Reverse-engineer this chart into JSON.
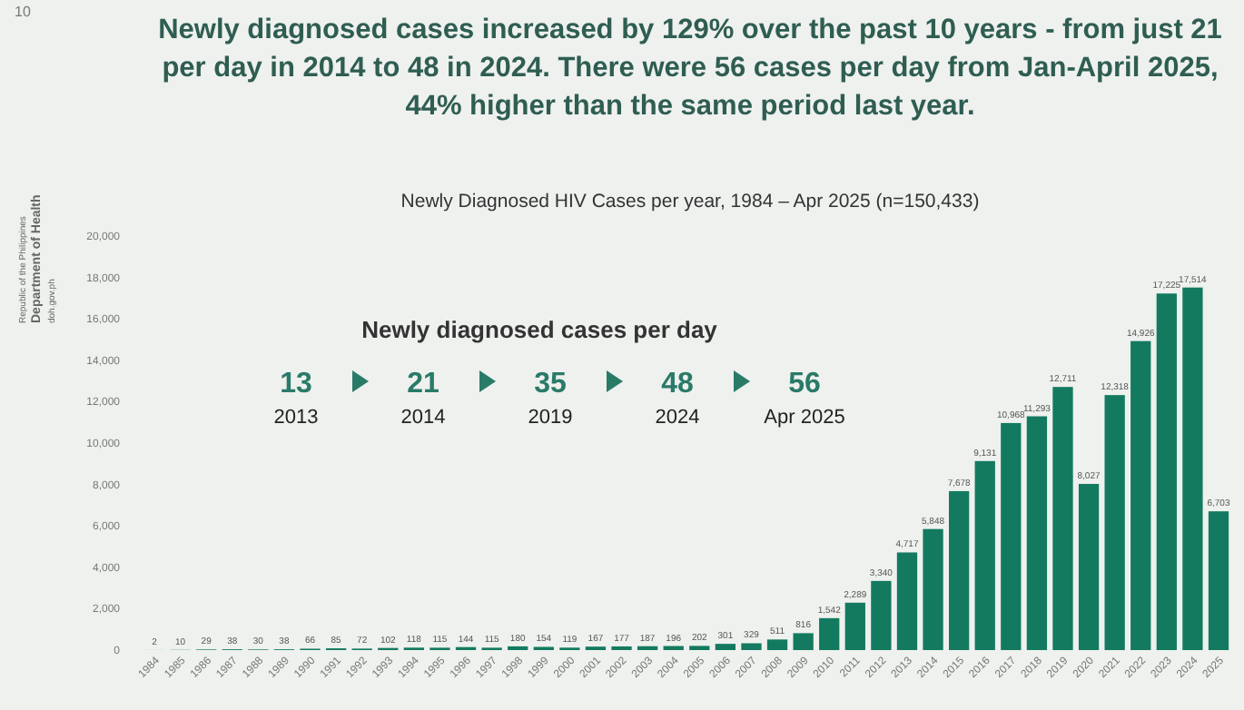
{
  "chart_data": {
    "type": "bar",
    "title": "Newly diagnosed cases increased by 129% over the past 10 years - from just 21 per day in 2014 to 48 in 2024. There were 56 cases per day from Jan-April 2025, 44% higher than the same period last year.",
    "subtitle": "Newly Diagnosed HIV Cases per year, 1984 – Apr 2025 (n=150,433)",
    "categories": [
      "1984",
      "1985",
      "1986",
      "1987",
      "1988",
      "1989",
      "1990",
      "1991",
      "1992",
      "1993",
      "1994",
      "1995",
      "1996",
      "1997",
      "1998",
      "1999",
      "2000",
      "2001",
      "2002",
      "2003",
      "2004",
      "2005",
      "2006",
      "2007",
      "2008",
      "2009",
      "2010",
      "2011",
      "2012",
      "2013",
      "2014",
      "2015",
      "2016",
      "2017",
      "2018",
      "2019",
      "2020",
      "2021",
      "2022",
      "2023",
      "2024",
      "2025"
    ],
    "values": [
      2,
      10,
      29,
      38,
      30,
      38,
      66,
      85,
      72,
      102,
      118,
      115,
      144,
      115,
      180,
      154,
      119,
      167,
      177,
      187,
      196,
      202,
      301,
      329,
      511,
      816,
      1542,
      2289,
      3340,
      4717,
      5848,
      7678,
      9131,
      10968,
      11293,
      12711,
      8027,
      12318,
      14926,
      17225,
      17514,
      6703
    ],
    "color": "#137a60",
    "value_labels": [
      "2",
      "10",
      "29",
      "38",
      "30",
      "38",
      "66",
      "85",
      "72",
      "102",
      "118",
      "115",
      "144",
      "115",
      "180",
      "154",
      "119",
      "167",
      "177",
      "187",
      "196",
      "202",
      "301",
      "329",
      "511",
      "816",
      "1,542",
      "2,289",
      "3,340",
      "4,717",
      "5,848",
      "7,678",
      "9,131",
      "10,968",
      "11,293",
      "12,711",
      "8,027",
      "12,318",
      "14,926",
      "17,225",
      "17,514",
      "6,703"
    ],
    "ylim": [
      0,
      20000
    ],
    "yticks": [
      {
        "value": 0,
        "label": "0"
      },
      {
        "value": 2000,
        "label": "2,000"
      },
      {
        "value": 4000,
        "label": "4,000"
      },
      {
        "value": 6000,
        "label": "6,000"
      },
      {
        "value": 8000,
        "label": "8,000"
      },
      {
        "value": 10000,
        "label": "10,000"
      },
      {
        "value": 12000,
        "label": "12,000"
      },
      {
        "value": 14000,
        "label": "14,000"
      },
      {
        "value": 16000,
        "label": "16,000"
      },
      {
        "value": 18000,
        "label": "18,000"
      },
      {
        "value": 20000,
        "label": "20,000"
      }
    ],
    "grid": false,
    "annotations": [
      "10",
      "Republic of the Philippines",
      "Department of Health",
      "doh.gov.ph",
      "Newly diagnosed cases per day",
      "13",
      "2013",
      "21",
      "2014",
      "35",
      "2019",
      "48",
      "2024",
      "56",
      "Apr 2025"
    ]
  }
}
